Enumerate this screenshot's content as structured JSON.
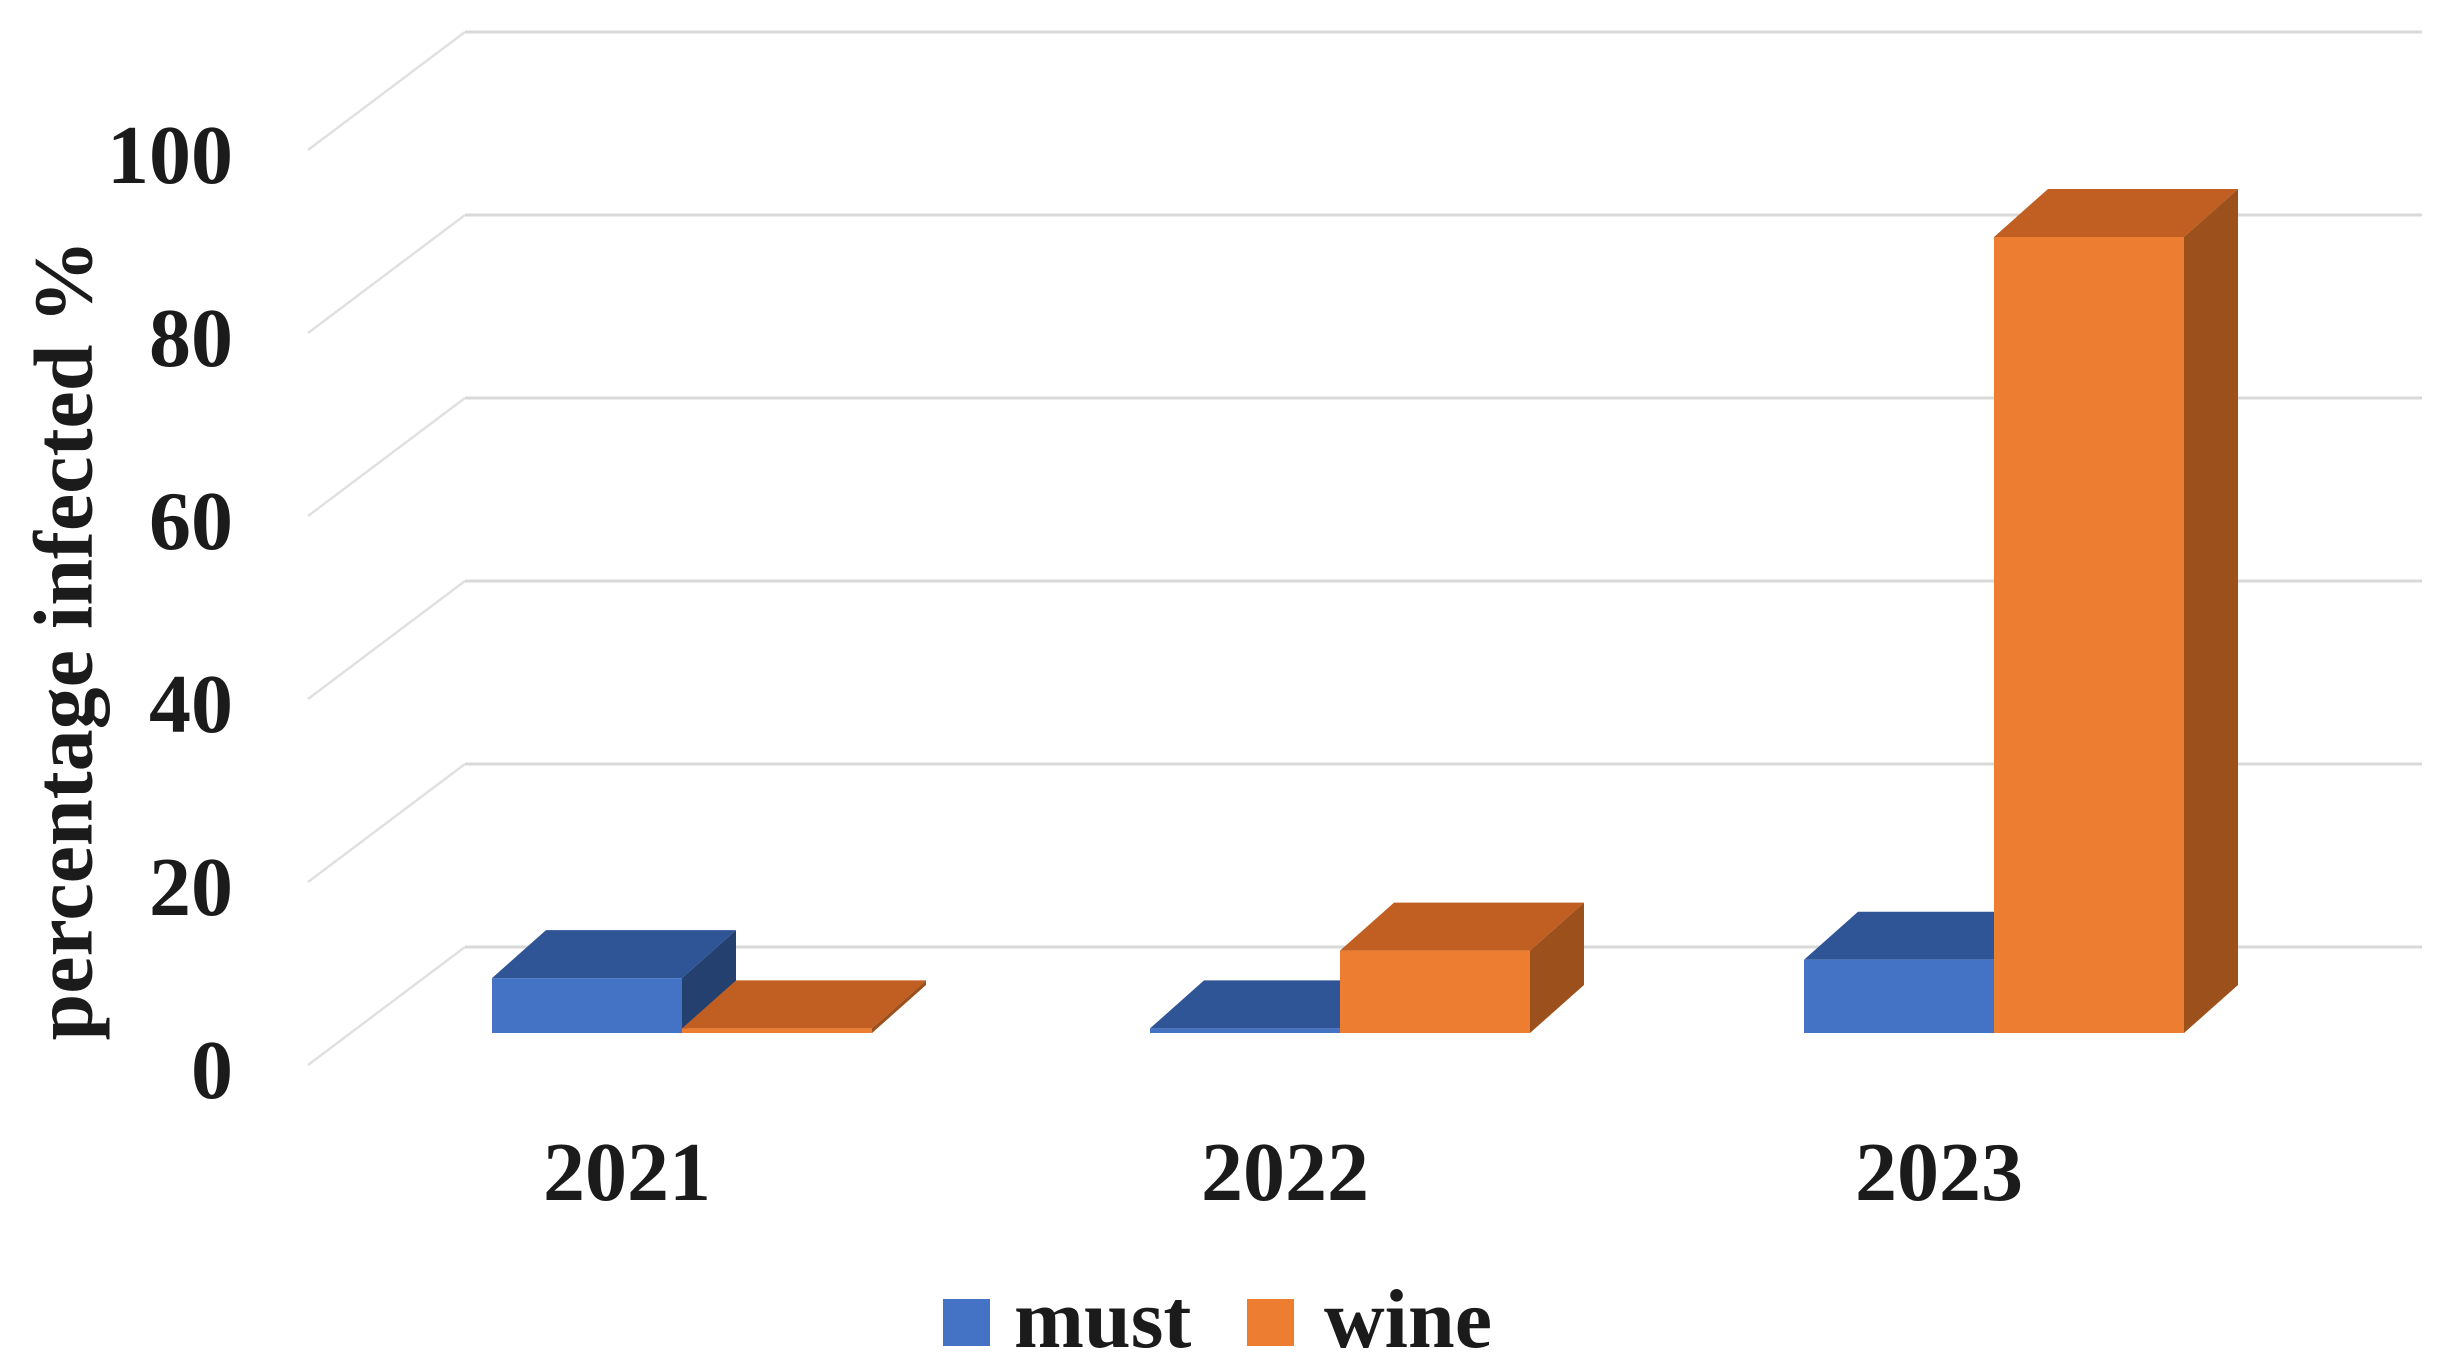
{
  "chart_data": {
    "type": "bar",
    "style": "3d-clustered-column",
    "title": "",
    "categories": [
      "2021",
      "2022",
      "2023"
    ],
    "series": [
      {
        "name": "must",
        "color": "#4472C4",
        "values": [
          6,
          0.5,
          8
        ]
      },
      {
        "name": "wine",
        "color": "#ED7D31",
        "values": [
          0.5,
          9,
          87
        ]
      }
    ],
    "xlabel": "",
    "ylabel": "percentage infected %",
    "ylim": [
      0,
      100
    ],
    "yticks": [
      0,
      20,
      40,
      60,
      80,
      100
    ],
    "grid": true,
    "legend_position": "bottom"
  },
  "palette": {
    "must_front": "#4472C4",
    "must_top": "#2F5597",
    "must_side": "#24406F",
    "wine_front": "#ED7D31",
    "wine_top": "#C05F21",
    "wine_side": "#9C511C",
    "gridline": "#d9d9d9",
    "grid_diag": "#e0e0e0",
    "text": "#1b1b1b"
  }
}
